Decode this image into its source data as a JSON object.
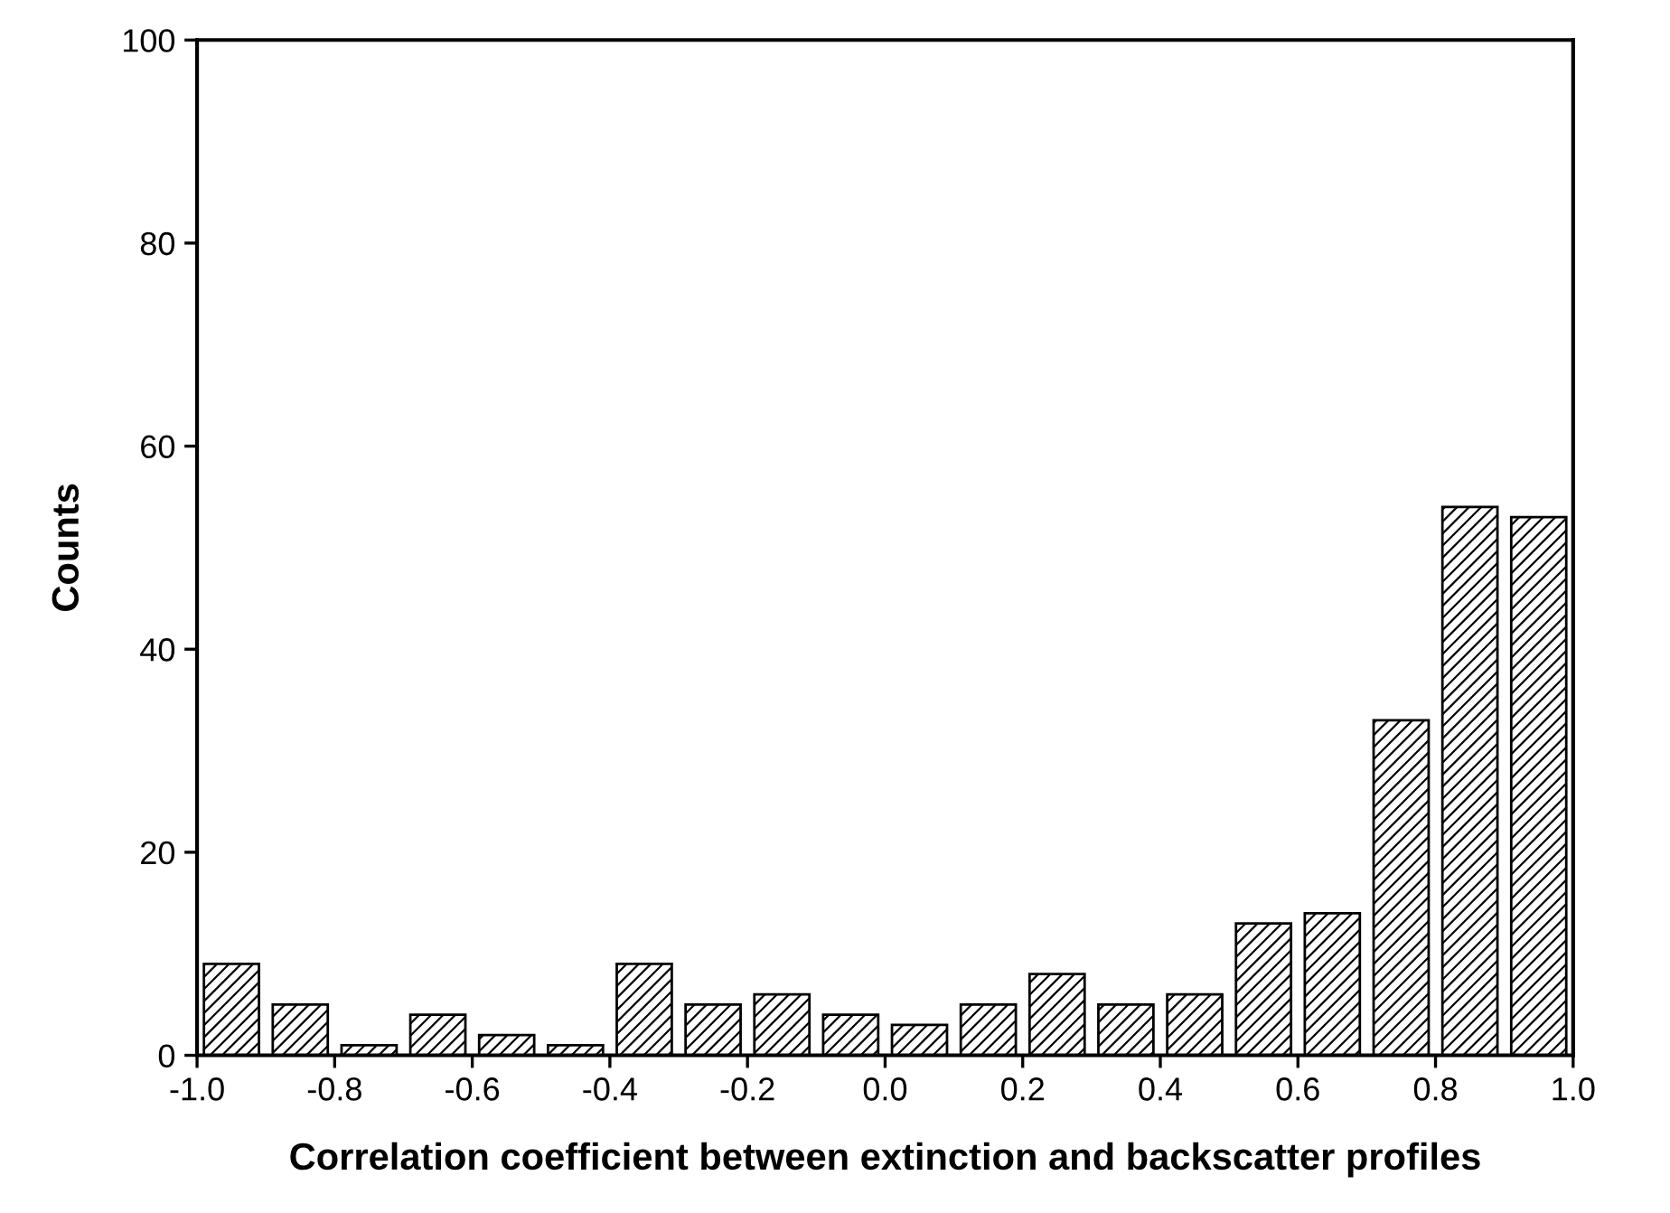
{
  "chart_data": {
    "type": "bar",
    "xlabel": "Correlation coefficient between extinction and backscatter profiles",
    "ylabel": "Counts",
    "x": [
      -0.95,
      -0.85,
      -0.75,
      -0.65,
      -0.55,
      -0.45,
      -0.35,
      -0.25,
      -0.15,
      -0.05,
      0.05,
      0.15,
      0.25,
      0.35,
      0.45,
      0.55,
      0.65,
      0.75,
      0.85,
      0.95
    ],
    "values": [
      9,
      5,
      1,
      4,
      2,
      1,
      9,
      5,
      6,
      4,
      3,
      5,
      8,
      5,
      6,
      13,
      14,
      33,
      54,
      53
    ],
    "color": "#000000",
    "xlim": [
      -1.0,
      1.0
    ],
    "ylim": [
      0,
      100
    ],
    "xticks": [
      {
        "value": -1.0,
        "label": "-1.0"
      },
      {
        "value": -0.8,
        "label": "-0.8"
      },
      {
        "value": -0.6,
        "label": "-0.6"
      },
      {
        "value": -0.4,
        "label": "-0.4"
      },
      {
        "value": -0.2,
        "label": "-0.2"
      },
      {
        "value": 0.0,
        "label": "0.0"
      },
      {
        "value": 0.2,
        "label": "0.2"
      },
      {
        "value": 0.4,
        "label": "0.4"
      },
      {
        "value": 0.6,
        "label": "0.6"
      },
      {
        "value": 0.8,
        "label": "0.8"
      },
      {
        "value": 1.0,
        "label": "1.0"
      }
    ],
    "yticks": [
      0,
      20,
      40,
      60,
      80,
      100
    ],
    "grid": false,
    "legend": false
  }
}
